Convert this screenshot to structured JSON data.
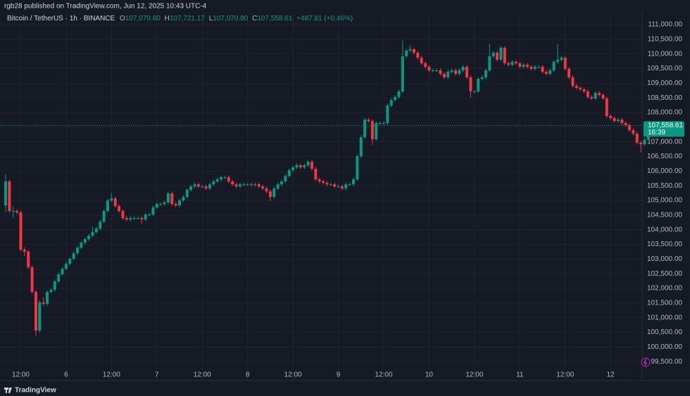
{
  "header": {
    "published": "rgb28 published on TradingView.com, Jun 12, 2025 10:43 UTC-4",
    "symbol": "Bitcoin / TetherUS · 1h · BINANCE",
    "ohlc": [
      {
        "key": "O",
        "value": "107,070.80"
      },
      {
        "key": "H",
        "value": "107,721.17"
      },
      {
        "key": "L",
        "value": "107,070.80"
      },
      {
        "key": "C",
        "value": "107,558.61"
      }
    ],
    "change": "+487.81 (+0.46%)"
  },
  "footer": {
    "brand": "TradingView"
  },
  "price_box": {
    "price": "107,558.61",
    "countdown": "16:39"
  },
  "chart_data": {
    "type": "candlestick",
    "up_color": "#089981",
    "down_color": "#f23645",
    "grid": true,
    "categories": [
      null,
      null,
      null,
      null,
      "12:00",
      null,
      null,
      null,
      null,
      null,
      null,
      null,
      null,
      null,
      null,
      null,
      "6",
      null,
      null,
      null,
      null,
      null,
      null,
      null,
      null,
      null,
      null,
      null,
      "12:00",
      null,
      null,
      null,
      null,
      null,
      null,
      null,
      null,
      null,
      null,
      null,
      "7",
      null,
      null,
      null,
      null,
      null,
      null,
      null,
      null,
      null,
      null,
      null,
      "12:00",
      null,
      null,
      null,
      null,
      null,
      null,
      null,
      null,
      null,
      null,
      null,
      "8",
      null,
      null,
      null,
      null,
      null,
      null,
      null,
      null,
      null,
      null,
      null,
      "12:00",
      null,
      null,
      null,
      null,
      null,
      null,
      null,
      null,
      null,
      null,
      null,
      "9",
      null,
      null,
      null,
      null,
      null,
      null,
      null,
      null,
      null,
      null,
      null,
      "12:00",
      null,
      null,
      null,
      null,
      null,
      null,
      null,
      null,
      null,
      null,
      null,
      "10",
      null,
      null,
      null,
      null,
      null,
      null,
      null,
      null,
      null,
      null,
      null,
      "12:00",
      null,
      null,
      null,
      null,
      null,
      null,
      null,
      null,
      null,
      null,
      null,
      "11",
      null,
      null,
      null,
      null,
      null,
      null,
      null,
      null,
      null,
      null,
      null,
      "12:00",
      null,
      null,
      null,
      null,
      null,
      null,
      null,
      null,
      null,
      null,
      null,
      "12",
      null,
      null,
      null,
      null,
      null,
      null,
      null,
      null,
      null,
      null
    ],
    "open": [
      104830,
      105650,
      104640,
      104640,
      104590,
      103320,
      103250,
      102720,
      101880,
      100560,
      101520,
      101470,
      101880,
      101950,
      102240,
      102480,
      102670,
      102840,
      103010,
      103200,
      103390,
      103560,
      103680,
      103800,
      103920,
      104040,
      104280,
      104640,
      105000,
      105070,
      104810,
      104640,
      104400,
      104350,
      104400,
      104400,
      104400,
      104350,
      104520,
      104520,
      104760,
      104880,
      104880,
      104930,
      105240,
      104880,
      104830,
      105000,
      105120,
      105360,
      105480,
      105550,
      105480,
      105480,
      105410,
      105550,
      105650,
      105720,
      105790,
      105790,
      105650,
      105550,
      105480,
      105550,
      105550,
      105550,
      105530,
      105550,
      105480,
      105410,
      105310,
      105120,
      105410,
      105550,
      105650,
      105840,
      106030,
      106130,
      106200,
      106130,
      106200,
      106320,
      106080,
      105720,
      105650,
      105600,
      105550,
      105550,
      105480,
      105480,
      105410,
      105550,
      105550,
      105720,
      106510,
      107160,
      107760,
      107710,
      107090,
      107640,
      107640,
      107640,
      108240,
      108430,
      108530,
      108720,
      109920,
      110110,
      110160,
      110040,
      109870,
      109680,
      109560,
      109440,
      109440,
      109440,
      109320,
      109200,
      109390,
      109440,
      109320,
      109440,
      109560,
      109200,
      108720,
      108720,
      109150,
      109200,
      109440,
      109920,
      110040,
      109800,
      110210,
      109680,
      109630,
      109730,
      109680,
      109560,
      109630,
      109560,
      109490,
      109560,
      109560,
      109390,
      109320,
      109440,
      109730,
      109800,
      109870,
      109490,
      109200,
      108910,
      108840,
      108790,
      108720,
      108530,
      108480,
      108670,
      108600,
      108480,
      107880,
      107810,
      107710,
      107760,
      107640,
      107570,
      107400,
      107280,
      106970,
      106920,
      107070.8
    ],
    "high": [
      105900,
      105710,
      104800,
      104700,
      104650,
      103400,
      103310,
      102780,
      101940,
      101600,
      101700,
      101940,
      102010,
      102300,
      102540,
      102730,
      102900,
      103070,
      103260,
      103450,
      103620,
      103740,
      103860,
      104100,
      104100,
      104340,
      104700,
      105060,
      105260,
      105130,
      104870,
      104700,
      104460,
      104460,
      104460,
      104460,
      104460,
      104580,
      104580,
      104820,
      104940,
      104940,
      104990,
      105300,
      105300,
      104940,
      105060,
      105180,
      105420,
      105540,
      105610,
      105610,
      105540,
      105540,
      105610,
      105710,
      105780,
      105850,
      105850,
      105850,
      105710,
      105610,
      105610,
      105610,
      105610,
      105610,
      105610,
      105610,
      105540,
      105470,
      105370,
      105470,
      105610,
      105710,
      105900,
      106090,
      106190,
      106260,
      106260,
      106260,
      106380,
      106380,
      106140,
      105780,
      105710,
      105660,
      105610,
      105610,
      105540,
      105540,
      105610,
      105610,
      105780,
      106570,
      107220,
      107820,
      107820,
      107770,
      107700,
      107700,
      107700,
      108300,
      108490,
      108590,
      108780,
      110450,
      110170,
      110300,
      110220,
      110100,
      109930,
      109740,
      109620,
      109500,
      109500,
      109500,
      109380,
      109450,
      109500,
      109500,
      109500,
      109620,
      109620,
      109260,
      108780,
      109210,
      109260,
      109500,
      110350,
      110100,
      110100,
      110270,
      110270,
      109740,
      109790,
      109790,
      109740,
      109690,
      109690,
      109620,
      109620,
      109620,
      109620,
      109450,
      109500,
      109790,
      110340,
      109930,
      109930,
      109550,
      109260,
      108970,
      108900,
      108850,
      108780,
      108590,
      108730,
      108730,
      108660,
      108540,
      107940,
      107870,
      107820,
      107820,
      107700,
      107630,
      107460,
      107340,
      107030,
      107130,
      107721.17
    ],
    "low": [
      104600,
      104580,
      104400,
      104530,
      103260,
      103100,
      102660,
      101820,
      100380,
      100500,
      101400,
      101410,
      101820,
      101890,
      102180,
      102420,
      102610,
      102780,
      102950,
      103140,
      103330,
      103500,
      103620,
      103740,
      103860,
      103980,
      104220,
      104580,
      104940,
      104750,
      104580,
      104340,
      104290,
      104290,
      104340,
      104340,
      104200,
      104290,
      104460,
      104460,
      104700,
      104820,
      104820,
      104870,
      104820,
      104770,
      104770,
      104940,
      105060,
      105300,
      105420,
      105420,
      105420,
      105350,
      105350,
      105490,
      105590,
      105660,
      105730,
      105590,
      105490,
      105420,
      105420,
      105490,
      105490,
      105470,
      105470,
      105420,
      105350,
      105250,
      104980,
      105060,
      105350,
      105490,
      105590,
      105780,
      105970,
      106070,
      106070,
      106070,
      106140,
      106020,
      105660,
      105590,
      105540,
      105490,
      105490,
      105420,
      105420,
      105350,
      105350,
      105490,
      105490,
      105660,
      106450,
      107100,
      107650,
      106900,
      107030,
      107580,
      107580,
      107580,
      108180,
      108370,
      108470,
      108660,
      109860,
      110050,
      109980,
      109810,
      109620,
      109500,
      109380,
      109380,
      109380,
      109260,
      109140,
      109140,
      109330,
      109260,
      109260,
      109380,
      109140,
      108500,
      108660,
      108660,
      109090,
      109140,
      109380,
      109860,
      109740,
      109740,
      109620,
      109570,
      109570,
      109620,
      109500,
      109500,
      109500,
      109430,
      109430,
      109500,
      109330,
      109260,
      109260,
      109380,
      109670,
      109740,
      109430,
      109140,
      108850,
      108780,
      108730,
      108660,
      108470,
      108420,
      108420,
      108540,
      108420,
      107820,
      107750,
      107650,
      107650,
      107580,
      107510,
      107340,
      107220,
      106910,
      106640,
      106860,
      107070.8
    ],
    "close": [
      105650,
      104640,
      104640,
      104590,
      103320,
      103250,
      102720,
      101880,
      100560,
      101520,
      101470,
      101880,
      101950,
      102240,
      102480,
      102670,
      102840,
      103010,
      103200,
      103390,
      103560,
      103680,
      103800,
      103920,
      104040,
      104280,
      104640,
      105000,
      105070,
      104810,
      104640,
      104400,
      104350,
      104400,
      104400,
      104400,
      104350,
      104520,
      104520,
      104760,
      104880,
      104880,
      104930,
      105240,
      104880,
      104830,
      105000,
      105120,
      105360,
      105480,
      105550,
      105480,
      105480,
      105410,
      105550,
      105650,
      105720,
      105790,
      105790,
      105650,
      105550,
      105480,
      105550,
      105550,
      105550,
      105530,
      105550,
      105480,
      105410,
      105310,
      105120,
      105410,
      105550,
      105650,
      105840,
      106030,
      106130,
      106200,
      106130,
      106200,
      106320,
      106080,
      105720,
      105650,
      105600,
      105550,
      105550,
      105480,
      105480,
      105410,
      105550,
      105550,
      105720,
      106510,
      107160,
      107760,
      107710,
      107090,
      107640,
      107640,
      107640,
      108240,
      108430,
      108530,
      108720,
      109920,
      110110,
      110160,
      110040,
      109870,
      109680,
      109560,
      109440,
      109440,
      109440,
      109320,
      109200,
      109390,
      109440,
      109320,
      109440,
      109560,
      109200,
      108720,
      108720,
      109150,
      109200,
      109440,
      109920,
      110040,
      109800,
      110210,
      109680,
      109630,
      109730,
      109680,
      109560,
      109630,
      109560,
      109490,
      109560,
      109560,
      109390,
      109320,
      109440,
      109730,
      109800,
      109870,
      109490,
      109200,
      108910,
      108840,
      108790,
      108720,
      108530,
      108480,
      108670,
      108600,
      108480,
      107880,
      107810,
      107710,
      107760,
      107640,
      107570,
      107400,
      107280,
      106970,
      106920,
      107070.8,
      107558.61
    ],
    "ylim": [
      99120,
      111480
    ],
    "yticks": [
      {
        "value": 99500,
        "label": "99,500.00"
      },
      {
        "value": 100000,
        "label": "100,000.00"
      },
      {
        "value": 100500,
        "label": "100,500.00"
      },
      {
        "value": 101000,
        "label": "101,000.00"
      },
      {
        "value": 101500,
        "label": "101,500.00"
      },
      {
        "value": 102000,
        "label": "102,000.00"
      },
      {
        "value": 102500,
        "label": "102,500.00"
      },
      {
        "value": 103000,
        "label": "103,000.00"
      },
      {
        "value": 103500,
        "label": "103,500.00"
      },
      {
        "value": 104000,
        "label": "104,000.00"
      },
      {
        "value": 104500,
        "label": "104,500.00"
      },
      {
        "value": 105000,
        "label": "105,000.00"
      },
      {
        "value": 105500,
        "label": "105,500.00"
      },
      {
        "value": 106000,
        "label": "106,000.00"
      },
      {
        "value": 106500,
        "label": "106,500.00"
      },
      {
        "value": 107000,
        "label": "107,000.00"
      },
      {
        "value": 107500,
        "label": "107,500.00"
      },
      {
        "value": 108000,
        "label": "108,000.00"
      },
      {
        "value": 108500,
        "label": "108,500.00"
      },
      {
        "value": 109000,
        "label": "109,000.00"
      },
      {
        "value": 109500,
        "label": "109,500.00"
      },
      {
        "value": 110000,
        "label": "110,000.00"
      },
      {
        "value": 110500,
        "label": "110,500.00"
      },
      {
        "value": 111000,
        "label": "111,000.00"
      }
    ]
  }
}
